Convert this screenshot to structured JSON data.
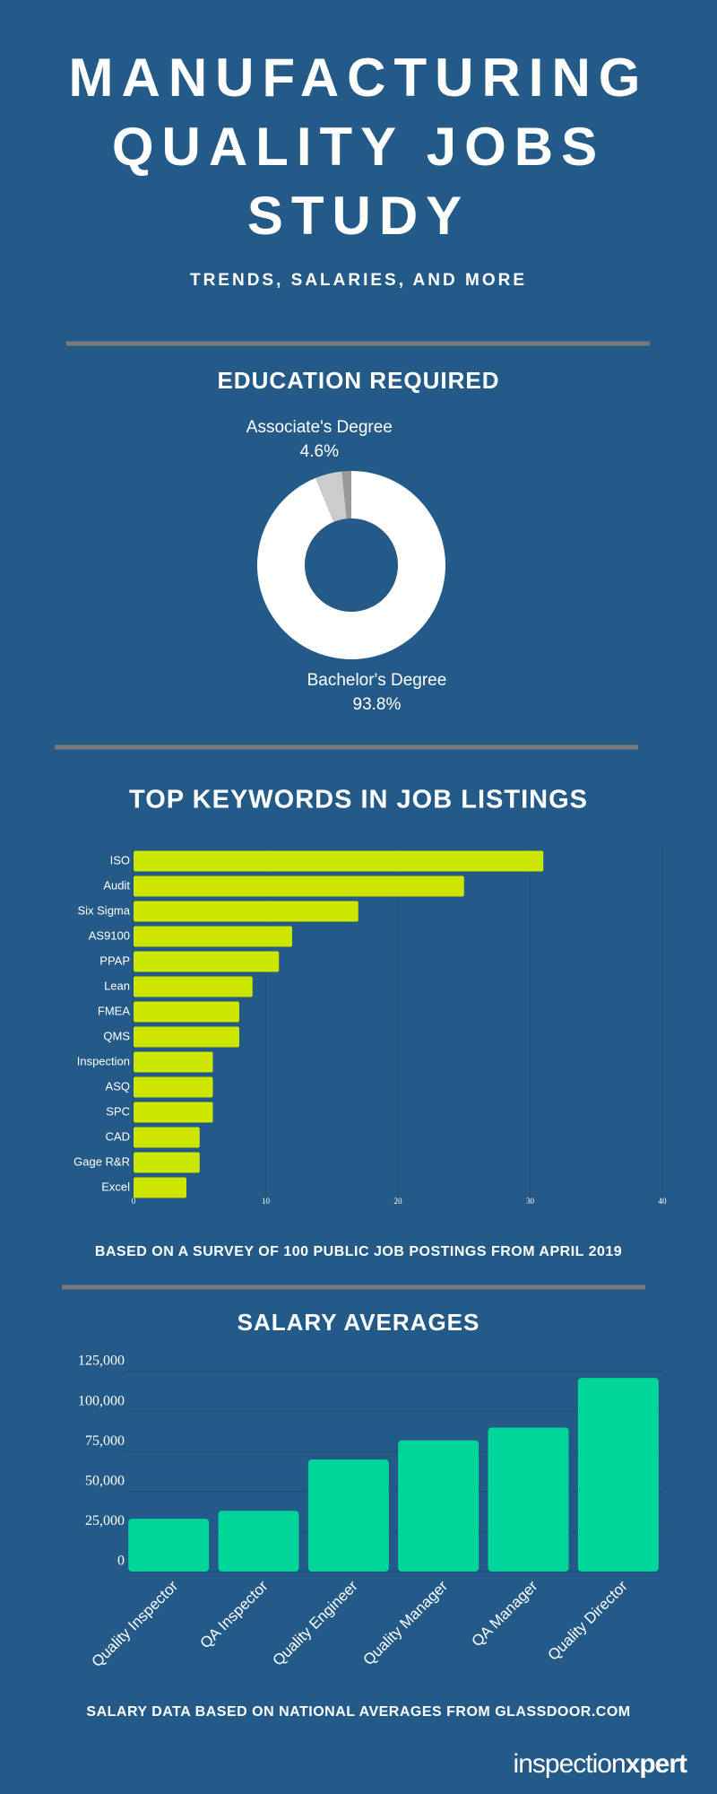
{
  "header": {
    "title": "MANUFACTURING QUALITY JOBS STUDY",
    "subtitle": "TRENDS, SALARIES, AND MORE"
  },
  "chart_data": [
    {
      "type": "pie",
      "title": "EDUCATION REQUIRED",
      "donut": true,
      "categories": [
        "Bachelor's Degree",
        "Associate's Degree",
        null
      ],
      "values": [
        93.8,
        4.6,
        1.6
      ],
      "value_labels": [
        "93.8%",
        "4.6%",
        null
      ],
      "colors": [
        "#ffffff",
        "#cccccc",
        "#999999"
      ]
    },
    {
      "type": "hbar",
      "title": "TOP KEYWORDS IN JOB LISTINGS",
      "categories": [
        "ISO",
        "Audit",
        "Six Sigma",
        "AS9100",
        "PPAP",
        "Lean",
        "FMEA",
        "QMS",
        "Inspection",
        "ASQ",
        "SPC",
        "CAD",
        "Gage R&R",
        "Excel"
      ],
      "values": [
        31,
        25,
        17,
        12,
        11,
        9,
        8,
        8,
        6,
        6,
        6,
        5,
        5,
        4
      ],
      "color": "#cde600",
      "xlim": [
        0,
        40
      ],
      "xticks": [
        0,
        10,
        20,
        30,
        40
      ],
      "grid": true,
      "note": "BASED ON A SURVEY OF 100 PUBLIC JOB POSTINGS FROM APRIL 2019"
    },
    {
      "type": "bar",
      "title": "SALARY AVERAGES",
      "categories": [
        "Quality Inspector",
        "QA Inspector",
        "Quality Engineer",
        "Quality Manager",
        "QA Manager",
        "Quality Director"
      ],
      "values": [
        33000,
        38000,
        70000,
        82000,
        90000,
        121000
      ],
      "color": "#00d69a",
      "ylim": [
        0,
        125000
      ],
      "yticks": [
        0,
        {
          "value": 25000,
          "label": "25,000"
        },
        {
          "value": 50000,
          "label": "50,000"
        },
        {
          "value": 75000,
          "label": "75,000"
        },
        {
          "value": 100000,
          "label": "100,000"
        },
        {
          "value": 125000,
          "label": "125,000"
        }
      ],
      "grid": true,
      "note": "SALARY DATA BASED ON NATIONAL AVERAGES FROM GLASSDOOR.COM"
    }
  ],
  "footer": {
    "logo": [
      "inspection",
      "xpert"
    ]
  }
}
